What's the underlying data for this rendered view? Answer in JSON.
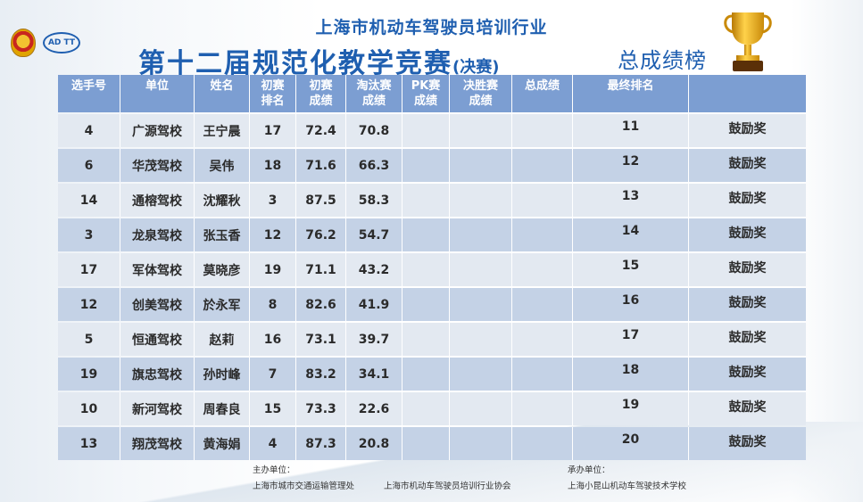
{
  "header": {
    "title_line1": "上海市机动车驾驶员培训行业",
    "title_line2": "第十二届规范化教学竞赛",
    "title_suffix": "(决赛)",
    "ranking_label": "总成绩榜",
    "logo_text": "AD TT"
  },
  "table": {
    "columns": [
      "选手号",
      "单位",
      "姓名",
      "初赛\n排名",
      "初赛\n成绩",
      "淘汰赛\n成绩",
      "PK赛\n成绩",
      "决胜赛\n成绩",
      "总成绩",
      "最终排名",
      ""
    ],
    "rows": [
      {
        "no": "4",
        "unit": "广源驾校",
        "name": "王宁晨",
        "prelim_rank": "17",
        "prelim_score": "72.4",
        "elim_score": "70.8",
        "pk": "",
        "final": "",
        "total": "",
        "rank": "11",
        "award": "鼓励奖"
      },
      {
        "no": "6",
        "unit": "华茂驾校",
        "name": "吴伟",
        "prelim_rank": "18",
        "prelim_score": "71.6",
        "elim_score": "66.3",
        "pk": "",
        "final": "",
        "total": "",
        "rank": "12",
        "award": "鼓励奖"
      },
      {
        "no": "14",
        "unit": "通榕驾校",
        "name": "沈耀秋",
        "prelim_rank": "3",
        "prelim_score": "87.5",
        "elim_score": "58.3",
        "pk": "",
        "final": "",
        "total": "",
        "rank": "13",
        "award": "鼓励奖"
      },
      {
        "no": "3",
        "unit": "龙泉驾校",
        "name": "张玉香",
        "prelim_rank": "12",
        "prelim_score": "76.2",
        "elim_score": "54.7",
        "pk": "",
        "final": "",
        "total": "",
        "rank": "14",
        "award": "鼓励奖"
      },
      {
        "no": "17",
        "unit": "军体驾校",
        "name": "莫晓彦",
        "prelim_rank": "19",
        "prelim_score": "71.1",
        "elim_score": "43.2",
        "pk": "",
        "final": "",
        "total": "",
        "rank": "15",
        "award": "鼓励奖"
      },
      {
        "no": "12",
        "unit": "创美驾校",
        "name": "於永军",
        "prelim_rank": "8",
        "prelim_score": "82.6",
        "elim_score": "41.9",
        "pk": "",
        "final": "",
        "total": "",
        "rank": "16",
        "award": "鼓励奖"
      },
      {
        "no": "5",
        "unit": "恒通驾校",
        "name": "赵莉",
        "prelim_rank": "16",
        "prelim_score": "73.1",
        "elim_score": "39.7",
        "pk": "",
        "final": "",
        "total": "",
        "rank": "17",
        "award": "鼓励奖"
      },
      {
        "no": "19",
        "unit": "旗忠驾校",
        "name": "孙时峰",
        "prelim_rank": "7",
        "prelim_score": "83.2",
        "elim_score": "34.1",
        "pk": "",
        "final": "",
        "total": "",
        "rank": "18",
        "award": "鼓励奖"
      },
      {
        "no": "10",
        "unit": "新河驾校",
        "name": "周春良",
        "prelim_rank": "15",
        "prelim_score": "73.3",
        "elim_score": "22.6",
        "pk": "",
        "final": "",
        "total": "",
        "rank": "19",
        "award": "鼓励奖"
      },
      {
        "no": "13",
        "unit": "翔茂驾校",
        "name": "黄海娟",
        "prelim_rank": "4",
        "prelim_score": "87.3",
        "elim_score": "20.8",
        "pk": "",
        "final": "",
        "total": "",
        "rank": "20",
        "award": "鼓励奖"
      }
    ]
  },
  "footer": {
    "host_label": "主办单位：",
    "host_1": "上海市城市交通运输管理处",
    "host_2": "上海市机动车驾驶员培训行业协会",
    "organizer_label": "承办单位：",
    "organizer": "上海小昆山机动车驾驶技术学校"
  },
  "colors": {
    "title_blue": "#1f5fb0",
    "header_bg": "#7c9ed2",
    "row_light": "#e3e9f1",
    "row_dark": "#c4d2e6"
  },
  "icons": [
    "police-emblem-icon",
    "adtt-logo-icon",
    "trophy-icon"
  ]
}
